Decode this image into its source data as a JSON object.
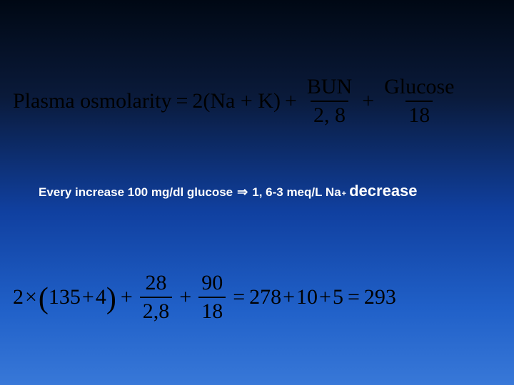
{
  "colors": {
    "bg_gradient_top": "#000814",
    "bg_gradient_bottom": "#3878d8",
    "formula_text": "#000000",
    "note_text": "#ffffff"
  },
  "typography": {
    "formula_font": "Times New Roman",
    "formula_size_pt": 30,
    "note_font": "Arial",
    "note_size_pt": 17,
    "decrease_size_pt": 22
  },
  "formula1": {
    "lhs": "Plasma osmolarity",
    "eq": "=",
    "term1": "2(Na + K)",
    "plus1": "+",
    "frac1_num": "BUN",
    "frac1_den": "2, 8",
    "plus2": "+",
    "frac2_num": "Glucose",
    "frac2_den": "18"
  },
  "note": {
    "pre": "Every increase 100 mg/dl glucose",
    "arrow": "⇒",
    "post": "1, 6-3 meq/L Na",
    "sup": "+",
    "tail": "decrease"
  },
  "formula2": {
    "a": "2",
    "times": "×",
    "lp": "(",
    "b": "135",
    "plus_in": "+",
    "c": "4",
    "rp": ")",
    "plus1": "+",
    "frac1_num": "28",
    "frac1_den": "2,8",
    "plus2": "+",
    "frac2_num": "90",
    "frac2_den": "18",
    "eq": "=",
    "r1": "278",
    "plus3": "+",
    "r2": "10",
    "plus4": "+",
    "r3": "5",
    "eq2": "=",
    "result": "293"
  }
}
